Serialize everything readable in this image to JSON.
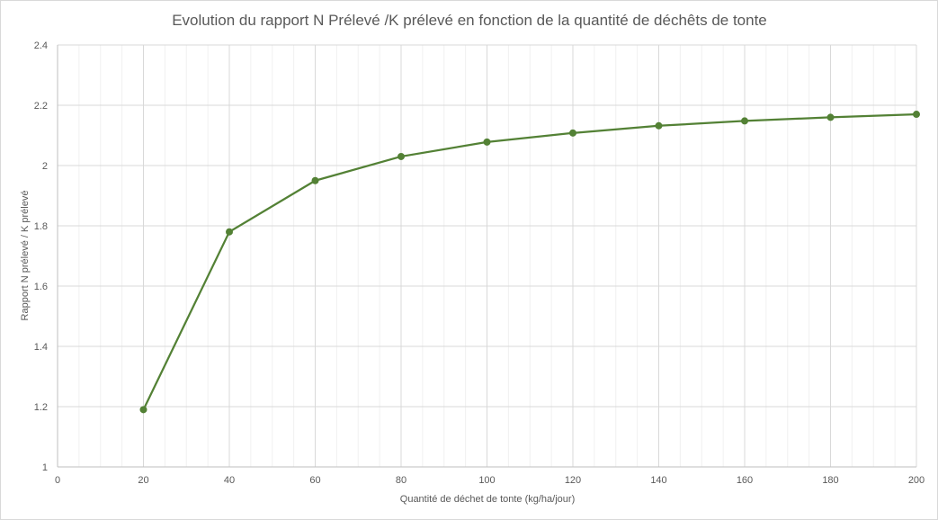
{
  "chart_data": {
    "type": "line",
    "title": "Evolution du rapport N Prélevé /K prélevé en fonction de la quantité de déchêts de tonte",
    "xlabel": "Quantité de déchet de tonte (kg/ha/jour)",
    "ylabel": "Rapport N prélevé / K prélevé",
    "xlim": [
      0,
      200
    ],
    "ylim": [
      1,
      2.4
    ],
    "x_ticks": [
      "0",
      "20",
      "40",
      "60",
      "80",
      "100",
      "120",
      "140",
      "160",
      "180",
      "200"
    ],
    "y_ticks": [
      "1",
      "1.2",
      "1.4",
      "1.6",
      "1.8",
      "2",
      "2.2",
      "2.4"
    ],
    "x_tick_values": [
      0,
      20,
      40,
      60,
      80,
      100,
      120,
      140,
      160,
      180,
      200
    ],
    "y_tick_values": [
      1,
      1.2,
      1.4,
      1.6,
      1.8,
      2,
      2.2,
      2.4
    ],
    "x_minor_step": 5,
    "grid": true,
    "legend": "none",
    "series": [
      {
        "color": "#538135",
        "x": [
          20,
          40,
          60,
          80,
          100,
          120,
          140,
          160,
          180,
          200
        ],
        "y": [
          1.19,
          1.78,
          1.95,
          2.03,
          2.078,
          2.108,
          2.132,
          2.148,
          2.16,
          2.17
        ]
      }
    ],
    "colors": {
      "major_grid": "#d9d9d9",
      "minor_grid": "#f0f0f0",
      "axis": "#bfbfbf",
      "text": "#595959"
    }
  }
}
